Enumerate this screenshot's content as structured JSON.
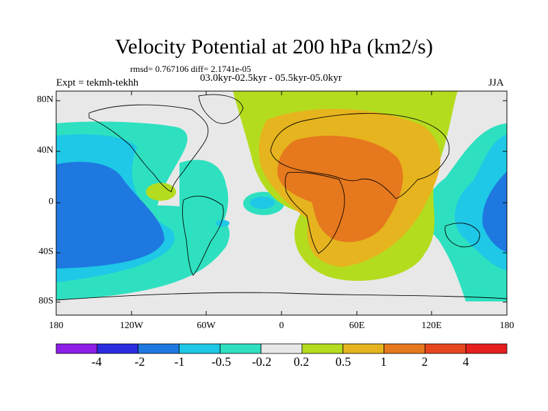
{
  "title": "Velocity Potential at 200 hPa (km2/s)",
  "stats": "rmsd= 0.767106 diff= 2.1741e-05",
  "experiment": "Expt = tekmh-tekhh",
  "period": "03.0kyr-02.5kyr - 05.5kyr-05.0kyr",
  "season": "JJA",
  "lat_labels": [
    "80N",
    "40N",
    "0",
    "40S",
    "80S"
  ],
  "lon_labels": [
    "180",
    "120W",
    "60W",
    "0",
    "60E",
    "120E",
    "180"
  ],
  "colorbar": {
    "labels": [
      "-4",
      "-2",
      "-1",
      "-0.5",
      "-0.2",
      "0.2",
      "0.5",
      "1",
      "2",
      "4"
    ],
    "colors": [
      "#8c1ee6",
      "#2b2be0",
      "#1e78e0",
      "#1ec8e6",
      "#2ee0c0",
      "#e8e8e8",
      "#b4dc1e",
      "#e6b41e",
      "#e6781e",
      "#e6461e",
      "#e61e1e"
    ]
  }
}
